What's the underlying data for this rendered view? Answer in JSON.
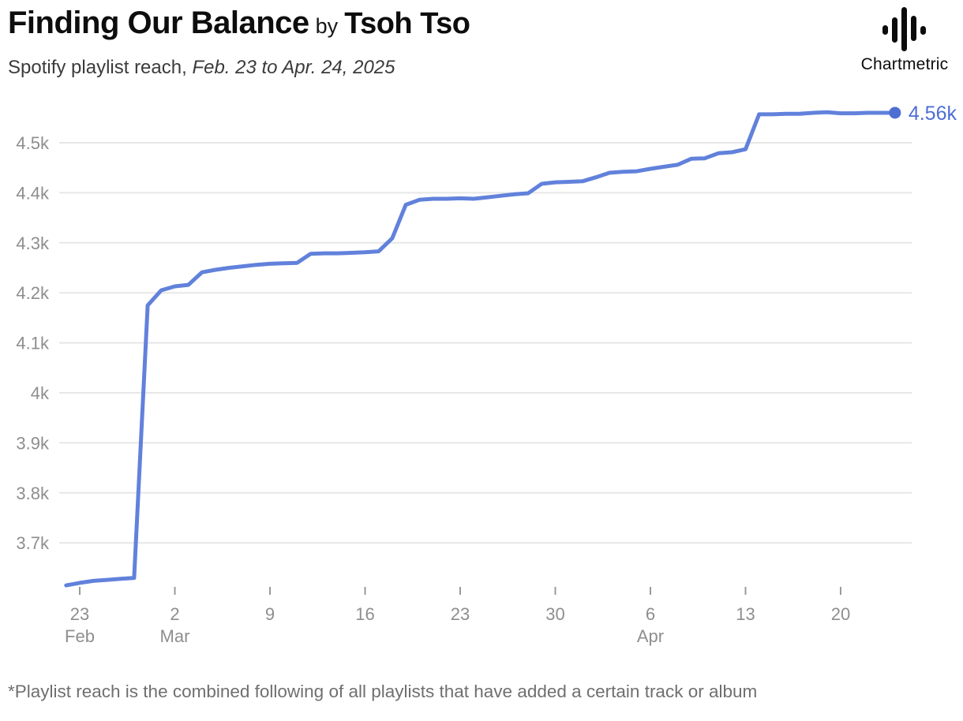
{
  "header": {
    "title": "Finding Our Balance",
    "by_connector": "by",
    "artist": "Tsoh Tso",
    "subtitle_prefix": "Spotify playlist reach, ",
    "subtitle_dates": "Feb. 23 to Apr. 24, 2025",
    "logo_text": "Chartmetric"
  },
  "footer": {
    "note": "*Playlist reach is the combined following of all playlists that have added a certain track or album"
  },
  "colors": {
    "line": "#6181DB",
    "accent": "#4E6ED4",
    "grid": "#E7E7E7",
    "axis_text": "#8E8E8E",
    "tick": "#9A9A9A",
    "title_text": "#0D0D0D",
    "subtitle_text": "#3B3B3B",
    "footnote_text": "#6F6F6F"
  },
  "chart_data": {
    "type": "line",
    "title": "Spotify playlist reach",
    "date_range": "Feb. 23 to Apr. 24, 2025",
    "legend": "none",
    "grid": "horizontal-only",
    "ylim": [
      3600,
      4580
    ],
    "end_label": "4.56k",
    "end_value": 4560,
    "y_axis": {
      "ticks": [
        {
          "label": "4.5k",
          "value": 4500
        },
        {
          "label": "4.4k",
          "value": 4400
        },
        {
          "label": "4.3k",
          "value": 4300
        },
        {
          "label": "4.2k",
          "value": 4200
        },
        {
          "label": "4.1k",
          "value": 4100
        },
        {
          "label": "4k",
          "value": 4000
        },
        {
          "label": "3.9k",
          "value": 3900
        },
        {
          "label": "3.8k",
          "value": 3800
        },
        {
          "label": "3.7k",
          "value": 3700
        }
      ]
    },
    "x_axis": {
      "ticks": [
        {
          "label": "23",
          "month": "Feb",
          "date": "Feb 23"
        },
        {
          "label": "2",
          "month": "Mar",
          "date": "Mar 2"
        },
        {
          "label": "9",
          "month": "",
          "date": "Mar 9"
        },
        {
          "label": "16",
          "month": "",
          "date": "Mar 16"
        },
        {
          "label": "23",
          "month": "",
          "date": "Mar 23"
        },
        {
          "label": "30",
          "month": "",
          "date": "Mar 30"
        },
        {
          "label": "6",
          "month": "Apr",
          "date": "Apr 6"
        },
        {
          "label": "13",
          "month": "",
          "date": "Apr 13"
        },
        {
          "label": "20",
          "month": "",
          "date": "Apr 20"
        }
      ]
    },
    "series": [
      {
        "date": "Feb 22",
        "value": 3615
      },
      {
        "date": "Feb 23",
        "value": 3620
      },
      {
        "date": "Feb 24",
        "value": 3624
      },
      {
        "date": "Feb 25",
        "value": 3626
      },
      {
        "date": "Feb 26",
        "value": 3628
      },
      {
        "date": "Feb 27",
        "value": 3630
      },
      {
        "date": "Feb 28",
        "value": 4175
      },
      {
        "date": "Mar 1",
        "value": 4205
      },
      {
        "date": "Mar 2",
        "value": 4213
      },
      {
        "date": "Mar 3",
        "value": 4216
      },
      {
        "date": "Mar 4",
        "value": 4241
      },
      {
        "date": "Mar 5",
        "value": 4246
      },
      {
        "date": "Mar 6",
        "value": 4250
      },
      {
        "date": "Mar 7",
        "value": 4253
      },
      {
        "date": "Mar 8",
        "value": 4256
      },
      {
        "date": "Mar 9",
        "value": 4258
      },
      {
        "date": "Mar 10",
        "value": 4259
      },
      {
        "date": "Mar 11",
        "value": 4260
      },
      {
        "date": "Mar 12",
        "value": 4278
      },
      {
        "date": "Mar 13",
        "value": 4279
      },
      {
        "date": "Mar 14",
        "value": 4279
      },
      {
        "date": "Mar 15",
        "value": 4280
      },
      {
        "date": "Mar 16",
        "value": 4281
      },
      {
        "date": "Mar 17",
        "value": 4283
      },
      {
        "date": "Mar 18",
        "value": 4309
      },
      {
        "date": "Mar 19",
        "value": 4376
      },
      {
        "date": "Mar 20",
        "value": 4386
      },
      {
        "date": "Mar 21",
        "value": 4388
      },
      {
        "date": "Mar 22",
        "value": 4388
      },
      {
        "date": "Mar 23",
        "value": 4389
      },
      {
        "date": "Mar 24",
        "value": 4388
      },
      {
        "date": "Mar 25",
        "value": 4391
      },
      {
        "date": "Mar 26",
        "value": 4394
      },
      {
        "date": "Mar 27",
        "value": 4397
      },
      {
        "date": "Mar 28",
        "value": 4399
      },
      {
        "date": "Mar 29",
        "value": 4418
      },
      {
        "date": "Mar 30",
        "value": 4421
      },
      {
        "date": "Mar 31",
        "value": 4422
      },
      {
        "date": "Apr 1",
        "value": 4423
      },
      {
        "date": "Apr 2",
        "value": 4431
      },
      {
        "date": "Apr 3",
        "value": 4440
      },
      {
        "date": "Apr 4",
        "value": 4442
      },
      {
        "date": "Apr 5",
        "value": 4443
      },
      {
        "date": "Apr 6",
        "value": 4448
      },
      {
        "date": "Apr 7",
        "value": 4452
      },
      {
        "date": "Apr 8",
        "value": 4456
      },
      {
        "date": "Apr 9",
        "value": 4468
      },
      {
        "date": "Apr 10",
        "value": 4469
      },
      {
        "date": "Apr 11",
        "value": 4479
      },
      {
        "date": "Apr 12",
        "value": 4481
      },
      {
        "date": "Apr 13",
        "value": 4487
      },
      {
        "date": "Apr 14",
        "value": 4557
      },
      {
        "date": "Apr 15",
        "value": 4557
      },
      {
        "date": "Apr 16",
        "value": 4558
      },
      {
        "date": "Apr 17",
        "value": 4558
      },
      {
        "date": "Apr 18",
        "value": 4560
      },
      {
        "date": "Apr 19",
        "value": 4561
      },
      {
        "date": "Apr 20",
        "value": 4559
      },
      {
        "date": "Apr 21",
        "value": 4559
      },
      {
        "date": "Apr 22",
        "value": 4560
      },
      {
        "date": "Apr 23",
        "value": 4560
      },
      {
        "date": "Apr 24",
        "value": 4560
      }
    ]
  }
}
